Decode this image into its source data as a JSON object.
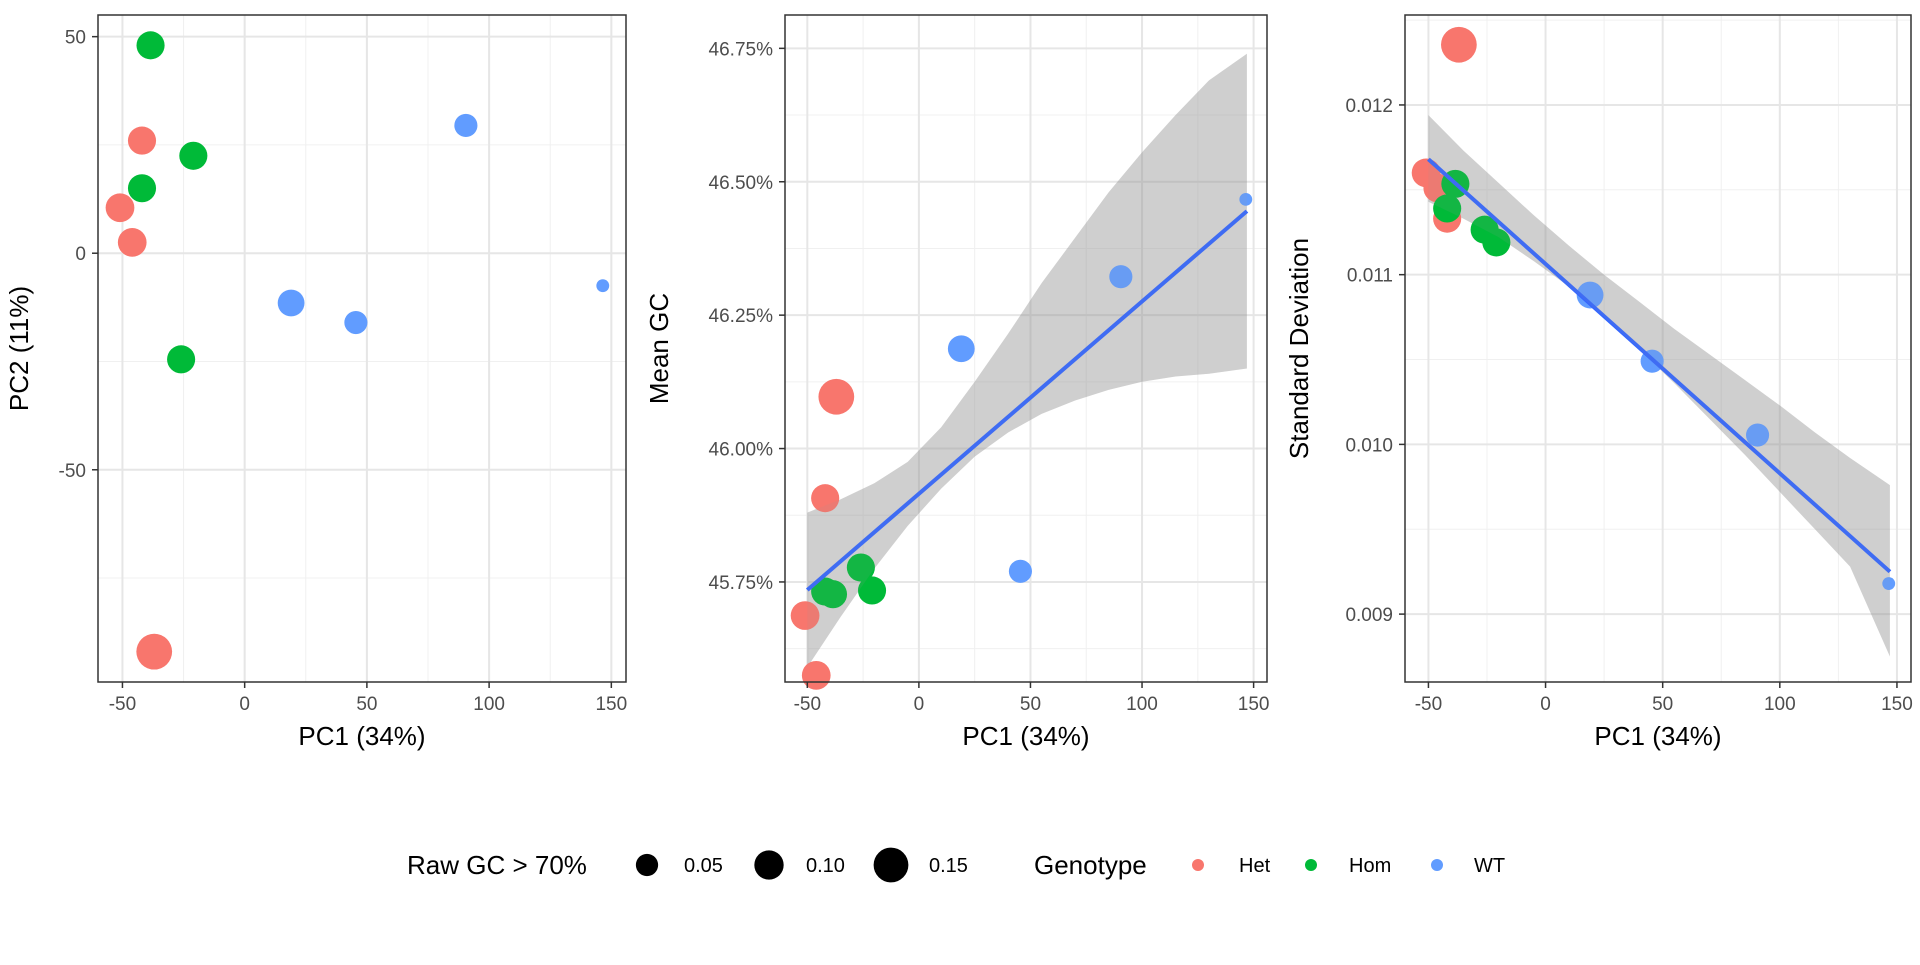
{
  "chart_data": [
    {
      "type": "scatter",
      "xlabel": "PC1 (34%)",
      "ylabel": "PC2 (11%)",
      "xlim": [
        -60,
        156
      ],
      "ylim": [
        -99,
        55
      ],
      "xticks": [
        -50,
        0,
        50,
        100,
        150
      ],
      "xtick_labels": [
        "-50",
        "0",
        "50",
        "100",
        "150"
      ],
      "yticks": [
        -50,
        0,
        50
      ],
      "ytick_labels": [
        "-50",
        "0",
        "50"
      ],
      "grid": true,
      "series": [
        {
          "name": "Het",
          "points": [
            {
              "x": -42,
              "y": 26,
              "size": 0.09
            },
            {
              "x": -51,
              "y": 10.5,
              "size": 0.095
            },
            {
              "x": -46,
              "y": 2.5,
              "size": 0.095
            },
            {
              "x": -37,
              "y": -92,
              "size": 0.16
            }
          ]
        },
        {
          "name": "Hom",
          "points": [
            {
              "x": -38.5,
              "y": 48,
              "size": 0.09
            },
            {
              "x": -21,
              "y": 22.5,
              "size": 0.09
            },
            {
              "x": -42,
              "y": 15,
              "size": 0.09
            },
            {
              "x": -26,
              "y": -24.5,
              "size": 0.09
            }
          ]
        },
        {
          "name": "WT",
          "points": [
            {
              "x": 90.5,
              "y": 29.5,
              "size": 0.055
            },
            {
              "x": 19,
              "y": -11.5,
              "size": 0.08
            },
            {
              "x": 45.5,
              "y": -16,
              "size": 0.055
            },
            {
              "x": 146.5,
              "y": -7.5,
              "size": 0.01
            }
          ]
        }
      ]
    },
    {
      "type": "scatter",
      "xlabel": "PC1 (34%)",
      "ylabel": "Mean GC",
      "xlim": [
        -60,
        156
      ],
      "ylim": [
        45.5625,
        46.8125
      ],
      "xticks": [
        -50,
        0,
        50,
        100,
        150
      ],
      "xtick_labels": [
        "-50",
        "0",
        "50",
        "100",
        "150"
      ],
      "yticks": [
        45.75,
        46.0,
        46.25,
        46.5,
        46.75
      ],
      "ytick_labels": [
        "45.75%",
        "46.00%",
        "46.25%",
        "46.50%",
        "46.75%"
      ],
      "grid": true,
      "trend": {
        "method": "linear",
        "x": [
          -50,
          147
        ],
        "y": [
          45.735,
          46.445
        ],
        "band_x": [
          -50,
          -35,
          -20,
          -5,
          10,
          25,
          40,
          55,
          70,
          85,
          100,
          115,
          130,
          147
        ],
        "band_lo": [
          45.59,
          45.685,
          45.775,
          45.855,
          45.925,
          45.985,
          46.03,
          46.065,
          46.09,
          46.11,
          46.125,
          46.135,
          46.14,
          46.15
        ],
        "band_hi": [
          45.88,
          45.905,
          45.935,
          45.975,
          46.04,
          46.125,
          46.215,
          46.31,
          46.395,
          46.48,
          46.555,
          46.625,
          46.69,
          46.74
        ]
      },
      "series": [
        {
          "name": "Het",
          "points": [
            {
              "x": -37,
              "y": 46.097,
              "size": 0.16
            },
            {
              "x": -42,
              "y": 45.907,
              "size": 0.09
            },
            {
              "x": -51,
              "y": 45.687,
              "size": 0.095
            },
            {
              "x": -46,
              "y": 45.575,
              "size": 0.095
            }
          ]
        },
        {
          "name": "Hom",
          "points": [
            {
              "x": -26,
              "y": 45.777,
              "size": 0.09
            },
            {
              "x": -42,
              "y": 45.732,
              "size": 0.09
            },
            {
              "x": -38.5,
              "y": 45.727,
              "size": 0.09
            },
            {
              "x": -21,
              "y": 45.734,
              "size": 0.09
            }
          ]
        },
        {
          "name": "WT",
          "points": [
            {
              "x": 90.5,
              "y": 46.322,
              "size": 0.055
            },
            {
              "x": 19,
              "y": 46.187,
              "size": 0.08
            },
            {
              "x": 45.5,
              "y": 45.77,
              "size": 0.055
            },
            {
              "x": 146.5,
              "y": 46.467,
              "size": 0.01
            }
          ]
        }
      ]
    },
    {
      "type": "scatter",
      "xlabel": "PC1 (34%)",
      "ylabel": "Standard Deviation",
      "xlim": [
        -60,
        156
      ],
      "ylim": [
        0.0086,
        0.01253
      ],
      "xticks": [
        -50,
        0,
        50,
        100,
        150
      ],
      "xtick_labels": [
        "-50",
        "0",
        "50",
        "100",
        "150"
      ],
      "yticks": [
        0.009,
        0.01,
        0.011,
        0.012
      ],
      "ytick_labels": [
        "0.009",
        "0.010",
        "0.011",
        "0.012"
      ],
      "grid": true,
      "trend": {
        "method": "linear",
        "x": [
          -50,
          147
        ],
        "y": [
          0.01168,
          0.00925
        ],
        "band_x": [
          -50,
          -35,
          -20,
          -5,
          10,
          25,
          40,
          55,
          70,
          85,
          100,
          115,
          130,
          147
        ],
        "band_lo": [
          0.01143,
          0.01133,
          0.01122,
          0.01108,
          0.01093,
          0.01075,
          0.01056,
          0.01036,
          0.01015,
          0.00994,
          0.00972,
          0.0095,
          0.00928,
          0.00875
        ],
        "band_hi": [
          0.01194,
          0.01173,
          0.01154,
          0.01135,
          0.01117,
          0.011,
          0.01084,
          0.01068,
          0.01053,
          0.01038,
          0.01023,
          0.01007,
          0.00992,
          0.00976
        ]
      },
      "series": [
        {
          "name": "Het",
          "points": [
            {
              "x": -37,
              "y": 0.012355,
              "size": 0.16
            },
            {
              "x": -51,
              "y": 0.0116,
              "size": 0.095
            },
            {
              "x": -46,
              "y": 0.01151,
              "size": 0.095
            },
            {
              "x": -42,
              "y": 0.01133,
              "size": 0.09
            }
          ]
        },
        {
          "name": "Hom",
          "points": [
            {
              "x": -38.5,
              "y": 0.011535,
              "size": 0.09
            },
            {
              "x": -42,
              "y": 0.01139,
              "size": 0.09
            },
            {
              "x": -26,
              "y": 0.011265,
              "size": 0.09
            },
            {
              "x": -21,
              "y": 0.01119,
              "size": 0.09
            }
          ]
        },
        {
          "name": "WT",
          "points": [
            {
              "x": 19,
              "y": 0.01088,
              "size": 0.08
            },
            {
              "x": 45.5,
              "y": 0.01049,
              "size": 0.055
            },
            {
              "x": 90.5,
              "y": 0.010055,
              "size": 0.055
            },
            {
              "x": 146.5,
              "y": 0.00918,
              "size": 0.01
            }
          ]
        }
      ]
    }
  ],
  "colors": {
    "Het": "#F8766D",
    "Hom": "#00BA38",
    "WT": "#619CFF",
    "trend_line": "#3366FF",
    "band": "#999999"
  },
  "legend": {
    "size": {
      "title": "Raw GC > 70%",
      "entries": [
        {
          "label": "0.05",
          "value": 0.05
        },
        {
          "label": "0.10",
          "value": 0.1
        },
        {
          "label": "0.15",
          "value": 0.15
        }
      ]
    },
    "color": {
      "title": "Genotype",
      "entries": [
        {
          "label": "Het",
          "color": "#F8766D"
        },
        {
          "label": "Hom",
          "color": "#00BA38"
        },
        {
          "label": "WT",
          "color": "#619CFF"
        }
      ]
    },
    "position": "bottom"
  }
}
